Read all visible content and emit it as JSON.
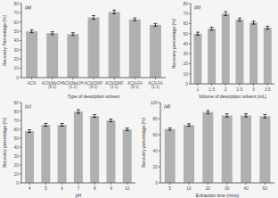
{
  "chart_data": [
    {
      "type": "bar",
      "title": "(a)",
      "categories": [
        "ACN",
        "ACN/MeOH\n(9:1)",
        "ACN/MeOH\n(1:1)",
        "ACN/DMF\n(9:1)",
        "ACN/DMF\n(1:1)",
        "ACN-FA\n(9:1)",
        "ACN-FA\n(1:1)"
      ],
      "values": [
        50,
        48,
        47,
        65,
        71,
        63,
        57
      ],
      "errors": [
        1.5,
        1.5,
        1.5,
        2.0,
        2.0,
        1.5,
        1.5
      ],
      "ylabel": "Recovery Percentage (%)",
      "xlabel": "Type of desorption solvent",
      "color": "#b0b0b0",
      "ylim": [
        0,
        80
      ],
      "yticks": [
        0,
        10,
        20,
        30,
        40,
        50,
        60,
        70,
        80
      ],
      "grid": false
    },
    {
      "type": "bar",
      "title": "(b)",
      "categories": [
        "1",
        "1.5",
        "2",
        "2.5",
        "3",
        "3.5"
      ],
      "values": [
        50,
        55,
        70,
        64,
        61,
        56
      ],
      "errors": [
        1.5,
        1.5,
        2.0,
        1.5,
        1.5,
        1.5
      ],
      "ylabel": "Recovery percentage (%)",
      "xlabel": "Volume of desorption solvent (mL)",
      "color": "#b0b0b0",
      "ylim": [
        0,
        80
      ],
      "yticks": [
        0,
        10,
        20,
        30,
        40,
        50,
        60,
        70,
        80
      ],
      "grid": false
    },
    {
      "type": "bar",
      "title": "(c)",
      "categories": [
        "4",
        "5",
        "6",
        "7",
        "8",
        "9",
        "10"
      ],
      "values": [
        58,
        65,
        65,
        80,
        75,
        70,
        60
      ],
      "errors": [
        1.5,
        1.5,
        1.5,
        2.0,
        1.5,
        1.5,
        1.5
      ],
      "ylabel": "Recovery percentage (%)",
      "xlabel": "pH",
      "color": "#b0b0b0",
      "ylim": [
        0,
        90
      ],
      "yticks": [
        0,
        10,
        20,
        30,
        40,
        50,
        60,
        70,
        80,
        90
      ],
      "grid": false
    },
    {
      "type": "bar",
      "title": "(d)",
      "categories": [
        "5",
        "10",
        "20",
        "30",
        "40",
        "60"
      ],
      "values": [
        67,
        72,
        88,
        84,
        84,
        83
      ],
      "errors": [
        1.5,
        1.5,
        2.0,
        2.0,
        2.0,
        2.0
      ],
      "ylabel": "Recovery percentage (%)",
      "xlabel": "Extraction time (mins)",
      "color": "#b0b0b0",
      "ylim": [
        0,
        100
      ],
      "yticks": [
        0,
        20,
        40,
        60,
        80,
        100
      ],
      "grid": false
    }
  ]
}
